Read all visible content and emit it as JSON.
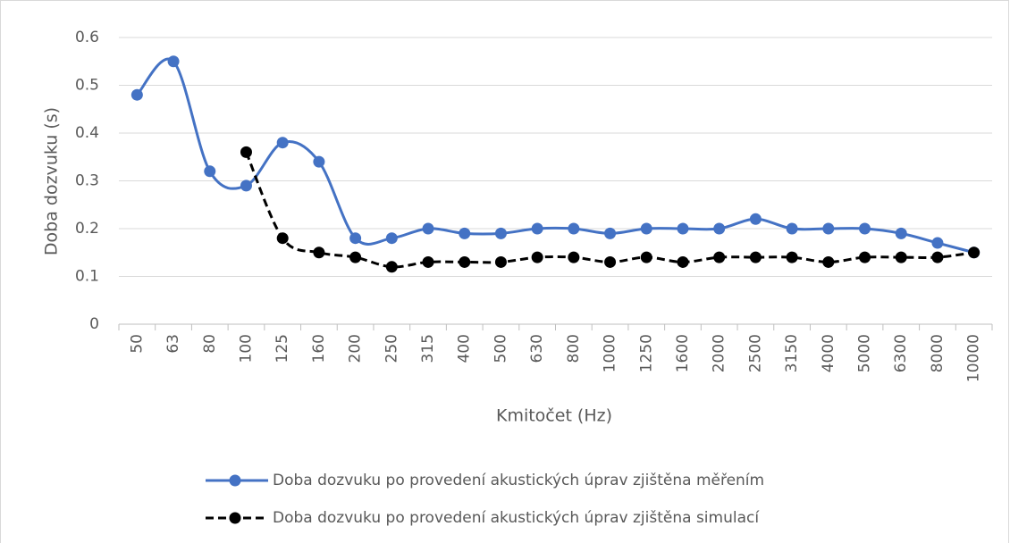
{
  "chart_data": {
    "type": "line",
    "x_label": "Kmitočet (Hz)",
    "y_label": "Doba dozvuku (s)",
    "categories": [
      "50",
      "63",
      "80",
      "100",
      "125",
      "160",
      "200",
      "250",
      "315",
      "400",
      "500",
      "630",
      "800",
      "1000",
      "1250",
      "1600",
      "2000",
      "2500",
      "3150",
      "4000",
      "5000",
      "6300",
      "8000",
      "10000"
    ],
    "series": [
      {
        "name": "Doba dozvuku po provedení akustických úprav zjištěna měřením",
        "color": "#4472c4",
        "dash": false,
        "smooth": true,
        "values": [
          0.48,
          0.55,
          0.32,
          0.29,
          0.38,
          0.34,
          0.18,
          0.18,
          0.2,
          0.19,
          0.19,
          0.2,
          0.2,
          0.19,
          0.2,
          0.2,
          0.2,
          0.22,
          0.2,
          0.2,
          0.2,
          0.19,
          0.17,
          0.15
        ]
      },
      {
        "name": "Doba dozvuku po provedení akustických úprav zjištěna simulací",
        "color": "#000000",
        "dash": true,
        "smooth": true,
        "values": [
          null,
          null,
          null,
          0.36,
          0.18,
          0.15,
          0.14,
          0.12,
          0.13,
          0.13,
          0.13,
          0.14,
          0.14,
          0.13,
          0.14,
          0.13,
          0.14,
          0.14,
          0.14,
          0.13,
          0.14,
          0.14,
          0.14,
          0.15
        ]
      }
    ],
    "ylim": [
      0,
      0.6
    ],
    "yticks": [
      0,
      0.1,
      0.2,
      0.3,
      0.4,
      0.5,
      0.6
    ],
    "grid": true,
    "legend": "bottom"
  }
}
